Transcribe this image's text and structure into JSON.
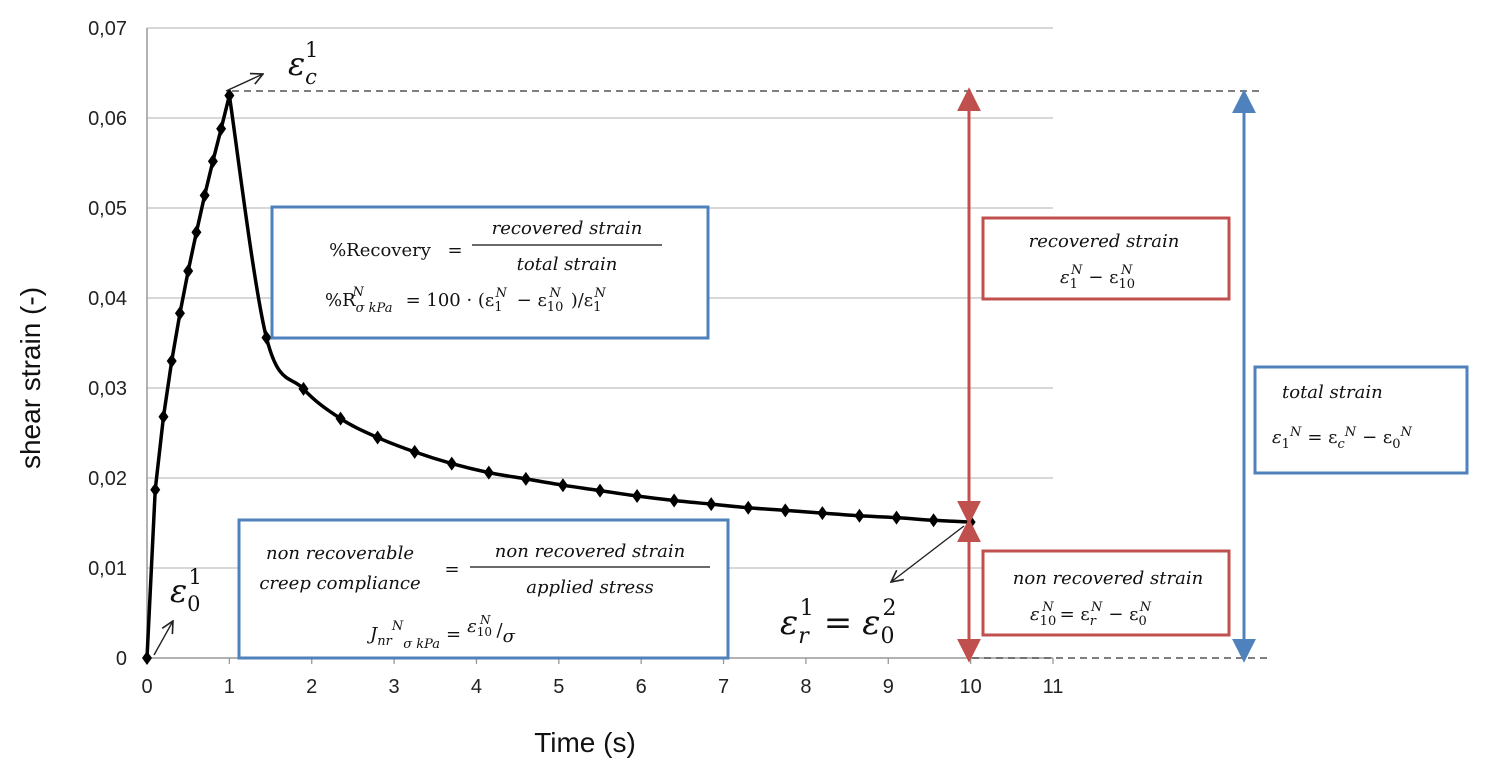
{
  "chart_data": {
    "type": "line",
    "xlabel": "Time (s)",
    "ylabel": "shear strain (-)",
    "xlim": [
      0,
      11
    ],
    "ylim": [
      0,
      0.07
    ],
    "x_ticks": [
      "0",
      "1",
      "2",
      "3",
      "4",
      "5",
      "6",
      "7",
      "8",
      "9",
      "10",
      "11"
    ],
    "y_ticks": [
      "0",
      "0,01",
      "0,02",
      "0,03",
      "0,04",
      "0,05",
      "0,06",
      "0,07"
    ],
    "grid": "horizontal",
    "series": [
      {
        "x": [
          0,
          0.1,
          0.2,
          0.3,
          0.4,
          0.5,
          0.6,
          0.7,
          0.8,
          0.9,
          1.0,
          1.45,
          1.9,
          2.35,
          2.8,
          3.25,
          3.7,
          4.15,
          4.6,
          5.05,
          5.5,
          5.95,
          6.4,
          6.85,
          7.3,
          7.75,
          8.2,
          8.65,
          9.1,
          9.55,
          10.0
        ],
        "y": [
          0,
          0.0187,
          0.0268,
          0.033,
          0.0383,
          0.043,
          0.0473,
          0.0514,
          0.0552,
          0.0588,
          0.0625,
          0.0356,
          0.0299,
          0.0266,
          0.0245,
          0.0229,
          0.0216,
          0.0206,
          0.0199,
          0.0192,
          0.0186,
          0.018,
          0.0175,
          0.0171,
          0.0167,
          0.0164,
          0.0161,
          0.0158,
          0.0156,
          0.0153,
          0.0151
        ]
      }
    ]
  },
  "annotations": {
    "eps_c": {
      "base": "ε",
      "sub": "c",
      "sup": "1"
    },
    "eps_0": {
      "base": "ε",
      "sub": "0",
      "sup": "1"
    },
    "eps_r_lhs": {
      "base": "ε",
      "sub": "r",
      "sup": "1"
    },
    "eps_r_eq": "=",
    "eps_r_rhs": {
      "base": "ε",
      "sub": "0",
      "sup": "2"
    },
    "recovery_box": {
      "lhs": "%Recovery",
      "eq": "=",
      "numerator": "recovered strain",
      "denominator": "total strain",
      "line2_lhs": "%R",
      "line2_sub": "σ kPa",
      "line2_sup": "N",
      "line2_rhs": "= 100 · (ε",
      "line2_rest": "− ε",
      "line2_end": ")/ε"
    },
    "jnr_box": {
      "lhs_line1": "non recoverable",
      "lhs_line2": "creep compliance",
      "eq": "=",
      "numerator": "non recovered strain",
      "denominator": "applied stress",
      "line2_lhs": "J",
      "line2_lhs_sub": "nr",
      "line2_sup": "N",
      "line2_sub": "σ kPa",
      "line2_eq": "=",
      "line2_num": "ε",
      "line2_den": "σ"
    },
    "recovered_box": {
      "title": "recovered strain",
      "formula_a": "ε",
      "formula_op": "− ε"
    },
    "non_recovered_box": {
      "title": "non recovered strain",
      "formula_a": "ε",
      "formula_eq": "= ε",
      "formula_op": "− ε"
    },
    "total_box": {
      "title": "total strain",
      "formula_a": "ε",
      "formula_eq": "= ε",
      "formula_op": "− ε"
    }
  },
  "colors": {
    "curve": "#000000",
    "grid": "#c0c0c0",
    "blue_box": "#4f81bd",
    "red_box": "#c0504d",
    "dashed": "#555555"
  }
}
